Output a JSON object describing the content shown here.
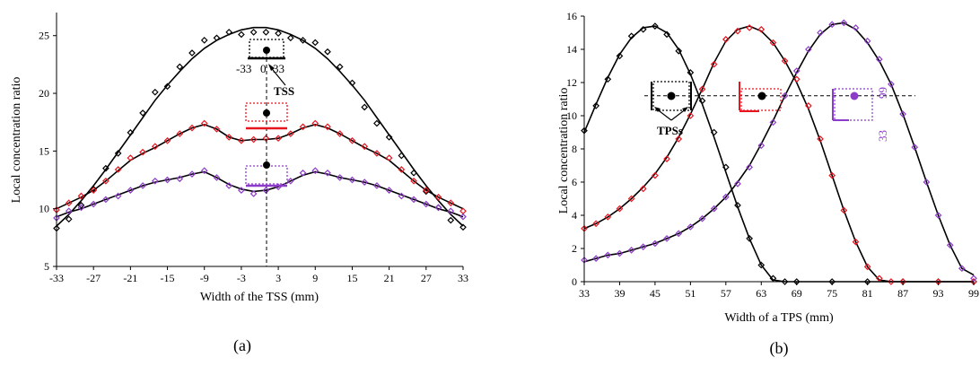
{
  "chart_data": [
    {
      "panel": "a",
      "panel_label": "(a)",
      "type": "scatter",
      "title": "",
      "xlabel": "Width of the TSS (mm)",
      "ylabel": "Local concentration ratio",
      "xlim": [
        -33,
        33
      ],
      "ylim": [
        5,
        27
      ],
      "xticks": [
        -33,
        -27,
        -21,
        -15,
        -9,
        -3,
        3,
        9,
        15,
        21,
        27,
        33
      ],
      "yticks": [
        5,
        10,
        15,
        20,
        25
      ],
      "grid": false,
      "colors": {
        "black": "#000000",
        "red": "#e8141e",
        "purple": "#8c3cc8"
      },
      "series": [
        {
          "color": "#000000",
          "x": [
            -33,
            -31,
            -29,
            -27,
            -25,
            -23,
            -21,
            -19,
            -17,
            -15,
            -13,
            -11,
            -9,
            -7,
            -5,
            -3,
            -1,
            1,
            3,
            5,
            7,
            9,
            11,
            13,
            15,
            17,
            19,
            21,
            23,
            25,
            27,
            29,
            31,
            33
          ],
          "points": [
            8.3,
            9.1,
            10.3,
            11.7,
            13.5,
            14.8,
            16.6,
            18.3,
            20.1,
            20.6,
            22.3,
            23.5,
            24.6,
            24.8,
            25.3,
            25.1,
            25.3,
            25.3,
            25.2,
            24.8,
            24.6,
            24.4,
            23.6,
            22.3,
            20.9,
            18.8,
            17.4,
            16.2,
            14.6,
            13.1,
            11.5,
            10.1,
            9.0,
            8.4
          ],
          "fit": [
            8.5,
            9.5,
            10.7,
            12.0,
            13.4,
            14.9,
            16.4,
            17.9,
            19.4,
            20.7,
            21.9,
            23.0,
            23.9,
            24.6,
            25.1,
            25.5,
            25.7,
            25.7,
            25.5,
            25.1,
            24.6,
            23.9,
            23.0,
            21.9,
            20.7,
            19.4,
            17.9,
            16.4,
            14.9,
            13.4,
            12.0,
            10.7,
            9.5,
            8.5
          ]
        },
        {
          "color": "#e8141e",
          "x": [
            -33,
            -31,
            -29,
            -27,
            -25,
            -23,
            -21,
            -19,
            -17,
            -15,
            -13,
            -11,
            -9,
            -7,
            -5,
            -3,
            -1,
            1,
            3,
            5,
            7,
            9,
            11,
            13,
            15,
            17,
            19,
            21,
            23,
            25,
            27,
            29,
            31,
            33
          ],
          "points": [
            9.9,
            10.5,
            11.1,
            11.6,
            12.4,
            13.4,
            14.4,
            14.9,
            15.4,
            15.9,
            16.5,
            17.0,
            17.4,
            16.9,
            16.2,
            15.9,
            16.0,
            16.1,
            16.1,
            16.5,
            17.1,
            17.4,
            17.1,
            16.5,
            15.9,
            15.4,
            14.8,
            14.4,
            13.4,
            12.4,
            11.6,
            11.0,
            10.5,
            9.8
          ],
          "fit": [
            10.0,
            10.5,
            11.0,
            11.6,
            12.4,
            13.3,
            14.2,
            14.8,
            15.3,
            15.9,
            16.5,
            17.0,
            17.3,
            16.9,
            16.2,
            15.9,
            16.0,
            16.0,
            16.1,
            16.5,
            17.0,
            17.3,
            17.0,
            16.5,
            15.9,
            15.3,
            14.8,
            14.2,
            13.3,
            12.4,
            11.6,
            11.0,
            10.5,
            10.0
          ]
        },
        {
          "color": "#8c3cc8",
          "x": [
            -33,
            -31,
            -29,
            -27,
            -25,
            -23,
            -21,
            -19,
            -17,
            -15,
            -13,
            -11,
            -9,
            -7,
            -5,
            -3,
            -1,
            1,
            3,
            5,
            7,
            9,
            11,
            13,
            15,
            17,
            19,
            21,
            23,
            25,
            27,
            29,
            31,
            33
          ],
          "points": [
            9.2,
            9.8,
            10.1,
            10.4,
            10.8,
            11.1,
            11.6,
            12.0,
            12.4,
            12.5,
            12.6,
            13.0,
            13.3,
            12.7,
            12.0,
            11.6,
            11.3,
            11.6,
            11.9,
            12.4,
            13.1,
            13.3,
            13.1,
            12.7,
            12.5,
            12.3,
            12.0,
            11.6,
            11.1,
            10.8,
            10.4,
            10.1,
            9.8,
            9.3
          ],
          "fit": [
            9.3,
            9.7,
            10.0,
            10.4,
            10.8,
            11.2,
            11.6,
            12.0,
            12.3,
            12.5,
            12.7,
            13.0,
            13.2,
            12.7,
            12.1,
            11.7,
            11.5,
            11.6,
            11.9,
            12.4,
            12.9,
            13.2,
            13.0,
            12.7,
            12.5,
            12.3,
            12.0,
            11.6,
            11.2,
            10.8,
            10.4,
            10.0,
            9.7,
            9.3
          ]
        }
      ],
      "annotations": {
        "tss_label": "TSS",
        "left_tick": "-33",
        "center_tick": "0",
        "right_tick": "33"
      }
    },
    {
      "panel": "b",
      "panel_label": "(b)",
      "type": "scatter",
      "title": "",
      "xlabel": "Width of a TPS (mm)",
      "ylabel": "Local concentration ratio",
      "xlim": [
        33,
        99
      ],
      "ylim": [
        0,
        16
      ],
      "xticks": [
        33,
        39,
        45,
        51,
        57,
        63,
        69,
        75,
        81,
        87,
        93,
        99
      ],
      "yticks": [
        0,
        2,
        4,
        6,
        8,
        10,
        12,
        14,
        16
      ],
      "grid": false,
      "reference_line_y": 11.2,
      "colors": {
        "black": "#000000",
        "red": "#e8141e",
        "purple": "#8c3cc8"
      },
      "series": [
        {
          "color": "#000000",
          "x": [
            33,
            35,
            37,
            39,
            41,
            43,
            45,
            47,
            49,
            51,
            53,
            55,
            57,
            59,
            61,
            63,
            65,
            67,
            69,
            75,
            81,
            87,
            93,
            99
          ],
          "points": [
            9.1,
            10.6,
            12.2,
            13.6,
            14.8,
            15.2,
            15.4,
            14.9,
            13.9,
            12.6,
            10.9,
            9.0,
            6.9,
            4.6,
            2.6,
            1.0,
            0.2,
            0.0,
            0.0,
            0.0,
            0.0,
            0.0,
            0.0,
            0.0
          ],
          "fit": [
            9.0,
            10.7,
            12.3,
            13.7,
            14.7,
            15.3,
            15.4,
            15.0,
            14.0,
            12.5,
            10.7,
            8.7,
            6.6,
            4.5,
            2.6,
            1.0,
            0.1,
            0.0,
            0.0,
            0.0,
            0.0,
            0.0,
            0.0,
            0.0
          ]
        },
        {
          "color": "#e8141e",
          "x": [
            33,
            35,
            37,
            39,
            41,
            43,
            45,
            47,
            49,
            51,
            53,
            55,
            57,
            59,
            61,
            63,
            65,
            67,
            69,
            71,
            73,
            75,
            77,
            79,
            81,
            83,
            85,
            87,
            93,
            99
          ],
          "points": [
            3.2,
            3.5,
            3.9,
            4.4,
            5.0,
            5.6,
            6.4,
            7.4,
            8.6,
            10.0,
            11.6,
            13.1,
            14.6,
            15.1,
            15.3,
            15.2,
            14.4,
            13.3,
            12.2,
            10.6,
            8.6,
            6.4,
            4.3,
            2.4,
            0.9,
            0.2,
            0.0,
            0.0,
            0.0,
            0.0
          ],
          "fit": [
            3.2,
            3.5,
            3.9,
            4.4,
            5.0,
            5.7,
            6.5,
            7.5,
            8.7,
            10.1,
            11.6,
            13.2,
            14.5,
            15.2,
            15.4,
            15.1,
            14.4,
            13.3,
            12.0,
            10.4,
            8.5,
            6.4,
            4.3,
            2.4,
            0.9,
            0.1,
            0.0,
            0.0,
            0.0,
            0.0
          ]
        },
        {
          "color": "#8c3cc8",
          "x": [
            33,
            35,
            37,
            39,
            41,
            43,
            45,
            47,
            49,
            51,
            53,
            55,
            57,
            59,
            61,
            63,
            65,
            67,
            69,
            71,
            73,
            75,
            77,
            79,
            81,
            83,
            85,
            87,
            89,
            91,
            93,
            95,
            97,
            99
          ],
          "points": [
            1.3,
            1.4,
            1.6,
            1.7,
            1.9,
            2.1,
            2.3,
            2.6,
            2.9,
            3.3,
            3.8,
            4.4,
            5.1,
            5.9,
            6.9,
            8.2,
            9.6,
            11.2,
            12.7,
            14.0,
            15.0,
            15.5,
            15.6,
            15.3,
            14.5,
            13.4,
            11.9,
            10.1,
            8.1,
            6.0,
            4.0,
            2.2,
            0.8,
            0.2
          ],
          "fit": [
            1.2,
            1.4,
            1.6,
            1.7,
            1.9,
            2.1,
            2.3,
            2.6,
            2.9,
            3.3,
            3.8,
            4.4,
            5.1,
            6.0,
            7.0,
            8.3,
            9.7,
            11.2,
            12.6,
            13.9,
            14.9,
            15.5,
            15.6,
            15.2,
            14.4,
            13.3,
            11.9,
            10.1,
            8.1,
            6.0,
            4.0,
            2.2,
            0.8,
            0.4
          ]
        }
      ],
      "annotations": {
        "tps_label": "TPSs",
        "purple_left": "33",
        "purple_right": "99"
      }
    }
  ]
}
